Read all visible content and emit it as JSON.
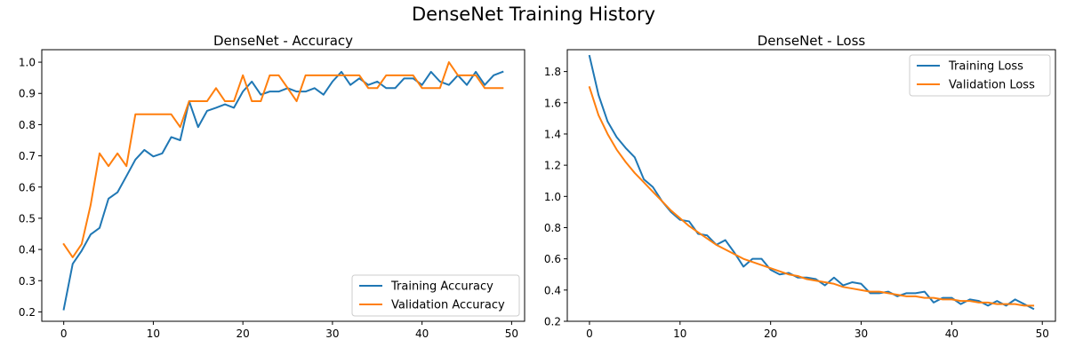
{
  "figure": {
    "title": "DenseNet Training History"
  },
  "chart_data": [
    {
      "type": "line",
      "title": "DenseNet - Accuracy",
      "xlabel": "",
      "ylabel": "",
      "xlim": [
        -2.45,
        51.45
      ],
      "ylim": [
        0.17,
        1.04
      ],
      "xticks": [
        0,
        10,
        20,
        30,
        40,
        50
      ],
      "yticks": [
        0.2,
        0.3,
        0.4,
        0.5,
        0.6,
        0.7,
        0.8,
        0.9,
        1.0
      ],
      "ytick_labels": [
        "0.2",
        "0.3",
        "0.4",
        "0.5",
        "0.6",
        "0.7",
        "0.8",
        "0.9",
        "1.0"
      ],
      "legend": "lower-right",
      "grid": false,
      "x": [
        0,
        1,
        2,
        3,
        4,
        5,
        6,
        7,
        8,
        9,
        10,
        11,
        12,
        13,
        14,
        15,
        16,
        17,
        18,
        19,
        20,
        21,
        22,
        23,
        24,
        25,
        26,
        27,
        28,
        29,
        30,
        31,
        32,
        33,
        34,
        35,
        36,
        37,
        38,
        39,
        40,
        41,
        42,
        43,
        44,
        45,
        46,
        47,
        48,
        49
      ],
      "series": [
        {
          "name": "Training Accuracy",
          "color": "#1f77b4",
          "values": [
            0.208,
            0.354,
            0.396,
            0.448,
            0.469,
            0.563,
            0.583,
            0.635,
            0.688,
            0.719,
            0.698,
            0.708,
            0.76,
            0.75,
            0.875,
            0.792,
            0.844,
            0.854,
            0.865,
            0.854,
            0.906,
            0.938,
            0.896,
            0.906,
            0.906,
            0.917,
            0.906,
            0.906,
            0.917,
            0.896,
            0.938,
            0.969,
            0.927,
            0.948,
            0.927,
            0.938,
            0.917,
            0.917,
            0.948,
            0.948,
            0.927,
            0.969,
            0.938,
            0.927,
            0.958,
            0.927,
            0.969,
            0.927,
            0.958,
            0.969
          ]
        },
        {
          "name": "Validation Accuracy",
          "color": "#ff7f0e",
          "values": [
            0.417,
            0.375,
            0.417,
            0.542,
            0.708,
            0.667,
            0.708,
            0.667,
            0.833,
            0.833,
            0.833,
            0.833,
            0.833,
            0.792,
            0.875,
            0.875,
            0.875,
            0.917,
            0.875,
            0.875,
            0.958,
            0.875,
            0.875,
            0.958,
            0.958,
            0.917,
            0.875,
            0.958,
            0.958,
            0.958,
            0.958,
            0.958,
            0.958,
            0.958,
            0.917,
            0.917,
            0.958,
            0.958,
            0.958,
            0.958,
            0.917,
            0.917,
            0.917,
            1.0,
            0.958,
            0.958,
            0.958,
            0.917,
            0.917,
            0.917
          ]
        }
      ]
    },
    {
      "type": "line",
      "title": "DenseNet - Loss",
      "xlabel": "",
      "ylabel": "",
      "xlim": [
        -2.45,
        51.45
      ],
      "ylim": [
        0.2,
        1.94
      ],
      "xticks": [
        0,
        10,
        20,
        30,
        40,
        50
      ],
      "yticks": [
        0.2,
        0.4,
        0.6,
        0.8,
        1.0,
        1.2,
        1.4,
        1.6,
        1.8
      ],
      "ytick_labels": [
        "0.2",
        "0.4",
        "0.6",
        "0.8",
        "1.0",
        "1.2",
        "1.4",
        "1.6",
        "1.8"
      ],
      "legend": "upper-right",
      "grid": false,
      "x": [
        0,
        1,
        2,
        3,
        4,
        5,
        6,
        7,
        8,
        9,
        10,
        11,
        12,
        13,
        14,
        15,
        16,
        17,
        18,
        19,
        20,
        21,
        22,
        23,
        24,
        25,
        26,
        27,
        28,
        29,
        30,
        31,
        32,
        33,
        34,
        35,
        36,
        37,
        38,
        39,
        40,
        41,
        42,
        43,
        44,
        45,
        46,
        47,
        48,
        49
      ],
      "series": [
        {
          "name": "Training Loss",
          "color": "#1f77b4",
          "values": [
            1.9,
            1.65,
            1.48,
            1.38,
            1.31,
            1.25,
            1.11,
            1.06,
            0.97,
            0.9,
            0.85,
            0.84,
            0.76,
            0.75,
            0.69,
            0.72,
            0.64,
            0.55,
            0.6,
            0.6,
            0.53,
            0.5,
            0.51,
            0.48,
            0.48,
            0.47,
            0.43,
            0.48,
            0.43,
            0.45,
            0.44,
            0.38,
            0.38,
            0.39,
            0.36,
            0.38,
            0.38,
            0.39,
            0.32,
            0.35,
            0.35,
            0.31,
            0.34,
            0.33,
            0.3,
            0.33,
            0.3,
            0.34,
            0.31,
            0.28
          ]
        },
        {
          "name": "Validation Loss",
          "color": "#ff7f0e",
          "values": [
            1.7,
            1.52,
            1.4,
            1.3,
            1.22,
            1.15,
            1.09,
            1.03,
            0.97,
            0.91,
            0.86,
            0.81,
            0.77,
            0.73,
            0.69,
            0.66,
            0.63,
            0.6,
            0.58,
            0.56,
            0.54,
            0.52,
            0.5,
            0.49,
            0.47,
            0.46,
            0.45,
            0.44,
            0.42,
            0.41,
            0.4,
            0.39,
            0.39,
            0.38,
            0.37,
            0.36,
            0.36,
            0.35,
            0.35,
            0.34,
            0.34,
            0.33,
            0.33,
            0.32,
            0.32,
            0.31,
            0.31,
            0.31,
            0.3,
            0.3
          ]
        }
      ]
    }
  ]
}
